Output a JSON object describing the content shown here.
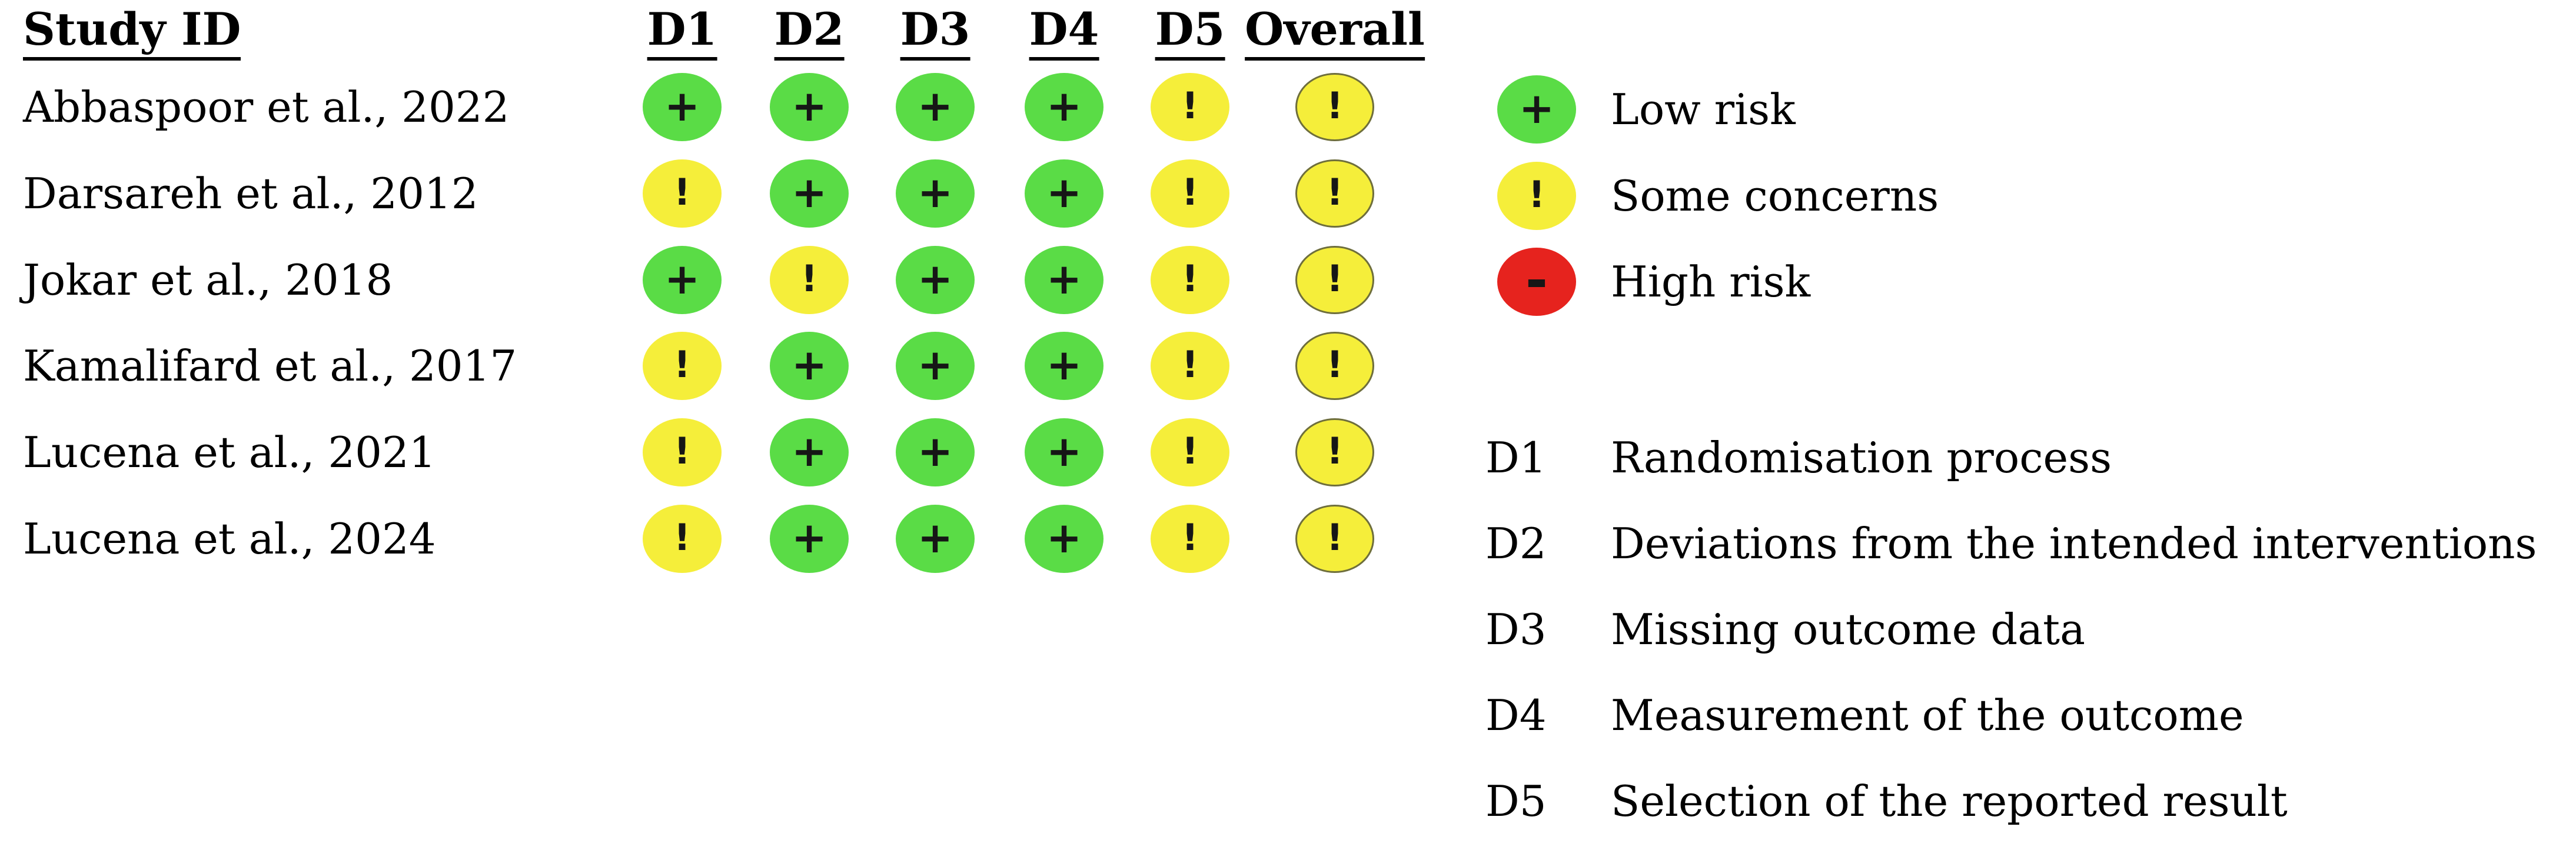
{
  "figure": {
    "kind": "risk-of-bias traffic light plot",
    "background": "#ffffff"
  },
  "header": {
    "study_id": "Study ID",
    "columns": [
      "D1",
      "D2",
      "D3",
      "D4",
      "D5",
      "Overall"
    ]
  },
  "studies": [
    {
      "name": "Abbaspoor et al., 2022",
      "ratings": [
        "low",
        "low",
        "low",
        "low",
        "some",
        "some"
      ]
    },
    {
      "name": "Darsareh et al., 2012",
      "ratings": [
        "some",
        "low",
        "low",
        "low",
        "some",
        "some"
      ]
    },
    {
      "name": "Jokar et al., 2018",
      "ratings": [
        "low",
        "some",
        "low",
        "low",
        "some",
        "some"
      ]
    },
    {
      "name": "Kamalifard et al., 2017",
      "ratings": [
        "some",
        "low",
        "low",
        "low",
        "some",
        "some"
      ]
    },
    {
      "name": "Lucena et al., 2021",
      "ratings": [
        "some",
        "low",
        "low",
        "low",
        "some",
        "some"
      ]
    },
    {
      "name": "Lucena et al., 2024",
      "ratings": [
        "some",
        "low",
        "low",
        "low",
        "some",
        "some"
      ]
    }
  ],
  "symbols": {
    "low": "+",
    "some": "!",
    "high": "-"
  },
  "legend": [
    {
      "key": "low",
      "symbol": "+",
      "label": "Low risk"
    },
    {
      "key": "some",
      "symbol": "!",
      "label": "Some concerns"
    },
    {
      "key": "high",
      "symbol": "-",
      "label": "High risk"
    }
  ],
  "domains": [
    {
      "id": "D1",
      "description": "Randomisation process"
    },
    {
      "id": "D2",
      "description": "Deviations from the intended interventions"
    },
    {
      "id": "D3",
      "description": "Missing outcome data"
    },
    {
      "id": "D4",
      "description": "Measurement of the outcome"
    },
    {
      "id": "D5",
      "description": "Selection of the reported result"
    }
  ],
  "colors": {
    "low": "#5adc46",
    "some": "#f5ee3a",
    "high": "#e6231e",
    "symbol": "#161616",
    "overall_outline": "#6e6e3c",
    "text": "#000000",
    "background": "#ffffff"
  },
  "chart_data": {
    "type": "table",
    "title": "",
    "row_header": "Study ID",
    "columns": [
      "D1",
      "D2",
      "D3",
      "D4",
      "D5",
      "Overall"
    ],
    "rows": [
      "Abbaspoor et al., 2022",
      "Darsareh et al., 2012",
      "Jokar et al., 2018",
      "Kamalifard et al., 2017",
      "Lucena et al., 2021",
      "Lucena et al., 2024"
    ],
    "values": [
      [
        "low",
        "low",
        "low",
        "low",
        "some",
        "some"
      ],
      [
        "some",
        "low",
        "low",
        "low",
        "some",
        "some"
      ],
      [
        "low",
        "some",
        "low",
        "low",
        "some",
        "some"
      ],
      [
        "some",
        "low",
        "low",
        "low",
        "some",
        "some"
      ],
      [
        "some",
        "low",
        "low",
        "low",
        "some",
        "some"
      ],
      [
        "some",
        "low",
        "low",
        "low",
        "some",
        "some"
      ]
    ],
    "value_labels": {
      "low": "Low risk (+)",
      "some": "Some concerns (!)",
      "high": "High risk (-)"
    },
    "legend_position": "right",
    "footnotes": {
      "D1": "Randomisation process",
      "D2": "Deviations from the intended interventions",
      "D3": "Missing outcome data",
      "D4": "Measurement of the outcome",
      "D5": "Selection of the reported result"
    }
  }
}
